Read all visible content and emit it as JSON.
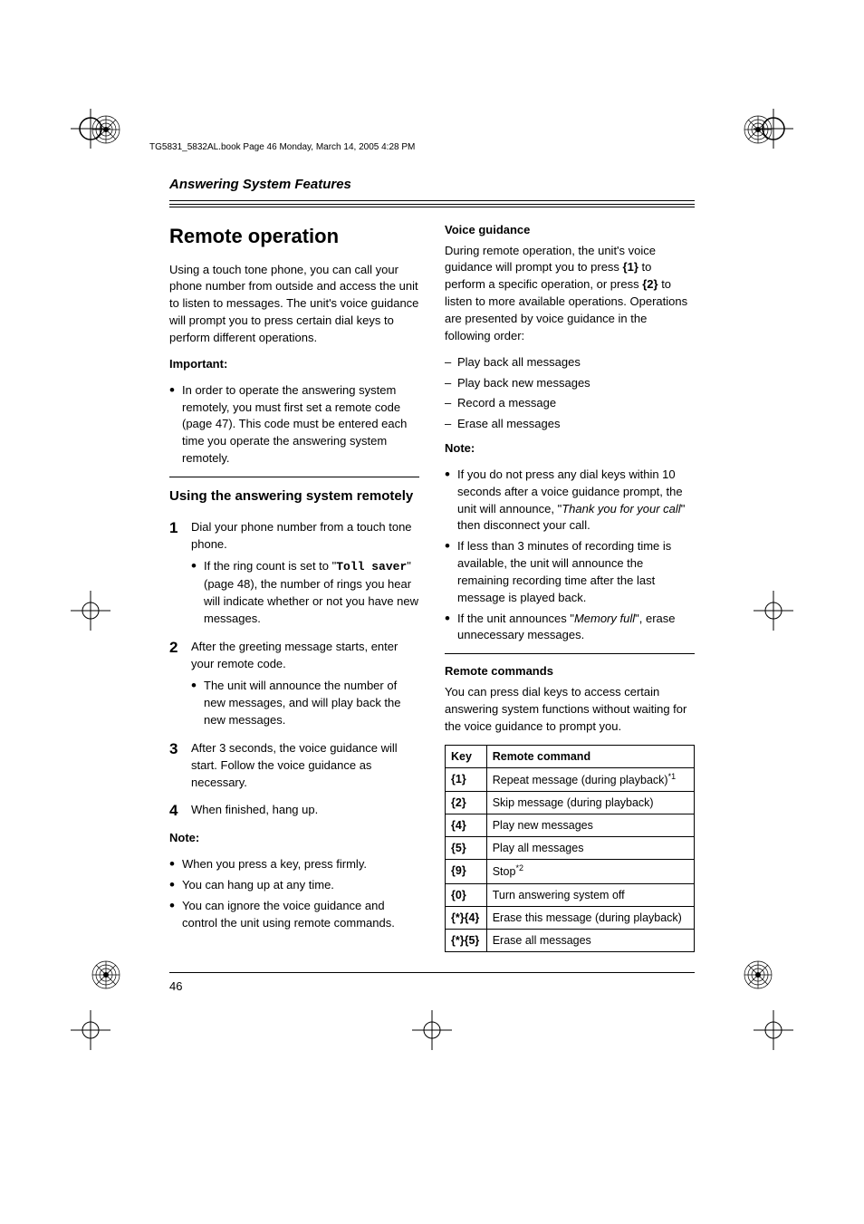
{
  "header_line": "TG5831_5832AL.book  Page 46  Monday, March 14, 2005  4:28 PM",
  "section_title": "Answering System Features",
  "page_number": "46",
  "left": {
    "h1": "Remote operation",
    "intro": "Using a touch tone phone, you can call your phone number from outside and access the unit to listen to messages. The unit's voice guidance will prompt you to press certain dial keys to perform different operations.",
    "important_label": "Important:",
    "important_item": "In order to operate the answering system remotely, you must first set a remote code (page 47). This code must be entered each time you operate the answering system remotely.",
    "h2": "Using the answering system remotely",
    "step1": "Dial your phone number from a touch tone phone.",
    "step1_sub_pre": "If the ring count is set to \"",
    "step1_sub_mono": "Toll saver",
    "step1_sub_post": "\" (page 48), the number of rings you hear will indicate whether or not you have new messages.",
    "step2": "After the greeting message starts, enter your remote code.",
    "step2_sub": "The unit will announce the number of new messages, and will play back the new messages.",
    "step3": "After 3 seconds, the voice guidance will start. Follow the voice guidance as necessary.",
    "step4": "When finished, hang up.",
    "note_label": "Note:",
    "note_items": [
      "When you press a key, press firmly.",
      "You can hang up at any time.",
      "You can ignore the voice guidance and control the unit using remote commands."
    ]
  },
  "right": {
    "voice_h3": "Voice guidance",
    "voice_pre": "During remote operation, the unit's voice guidance will prompt you to press ",
    "voice_key1": "1",
    "voice_mid1": " to perform a specific operation, or press ",
    "voice_key2": "2",
    "voice_mid2": " to listen to more available operations. Operations are presented by voice guidance in the following order:",
    "voice_list": [
      "Play back all messages",
      "Play back new messages",
      "Record a message",
      "Erase all messages"
    ],
    "note_label": "Note:",
    "note1_pre": "If you do not press any dial keys within 10 seconds after a voice guidance prompt, the unit will announce, \"",
    "note1_italic": "Thank you for your call",
    "note1_post": "\" then disconnect your call.",
    "note2": "If less than 3 minutes of recording time is available, the unit will announce the remaining recording time after the last message is played back.",
    "note3_pre": "If the unit announces \"",
    "note3_italic": "Memory full",
    "note3_post": "\", erase unnecessary messages.",
    "cmd_h3": "Remote commands",
    "cmd_intro": "You can press dial keys to access certain answering system functions without waiting for the voice guidance to prompt you.",
    "table": {
      "col1": "Key",
      "col2": "Remote command",
      "rows": [
        {
          "k": "1",
          "c": "Repeat message (during playback)",
          "sup": "*1"
        },
        {
          "k": "2",
          "c": "Skip message (during playback)",
          "sup": ""
        },
        {
          "k": "4",
          "c": "Play new messages",
          "sup": ""
        },
        {
          "k": "5",
          "c": "Play all messages",
          "sup": ""
        },
        {
          "k": "9",
          "c": "Stop",
          "sup": "*2"
        },
        {
          "k": "0",
          "c": "Turn answering system off",
          "sup": ""
        },
        {
          "k": "*}{4",
          "c": "Erase this message (during playback)",
          "sup": ""
        },
        {
          "k": "*}{5",
          "c": "Erase all messages",
          "sup": ""
        }
      ]
    }
  }
}
